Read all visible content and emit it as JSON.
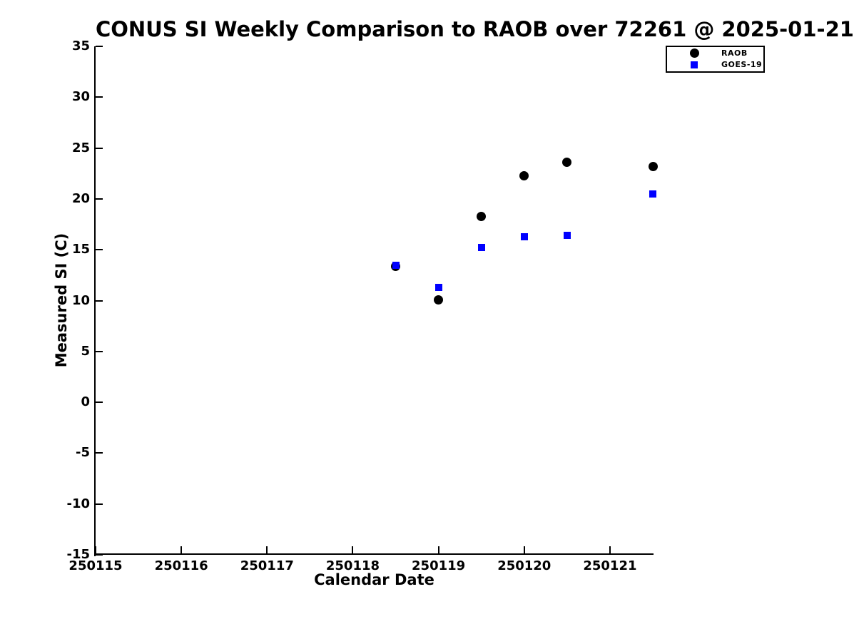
{
  "title": "CONUS SI Weekly Comparison to RAOB over 72261 @ 2025-01-21",
  "chart_data": {
    "type": "scatter",
    "title": "CONUS SI Weekly Comparison to RAOB over 72261 @ 2025-01-21",
    "xlabel": "Calendar Date",
    "ylabel": "Measured SI (C)",
    "xlim": [
      250115,
      250121.5
    ],
    "ylim": [
      -15,
      35
    ],
    "grid": false,
    "legend_position": "top-right",
    "x_ticks": [
      "250115",
      "250116",
      "250117",
      "250118",
      "250119",
      "250120",
      "250121"
    ],
    "x_tick_values": [
      250115,
      250116,
      250117,
      250118,
      250119,
      250120,
      250121
    ],
    "y_ticks": [
      "35",
      "30",
      "25",
      "20",
      "15",
      "10",
      "5",
      "0",
      "-5",
      "-10",
      "-15"
    ],
    "y_tick_values": [
      35,
      30,
      25,
      20,
      15,
      10,
      5,
      0,
      -5,
      -10,
      -15
    ],
    "series": [
      {
        "name": "RAOB",
        "marker": "circle",
        "color": "#000000",
        "points": [
          [
            250118.5,
            13.4
          ],
          [
            250119.0,
            10.1
          ],
          [
            250119.5,
            18.3
          ],
          [
            250120.0,
            22.3
          ],
          [
            250120.5,
            23.6
          ],
          [
            250121.5,
            23.2
          ]
        ]
      },
      {
        "name": "GOES-19",
        "marker": "square",
        "color": "#0000ff",
        "points": [
          [
            250118.5,
            13.5
          ],
          [
            250119.0,
            11.3
          ],
          [
            250119.5,
            15.2
          ],
          [
            250120.0,
            16.3
          ],
          [
            250120.5,
            16.4
          ],
          [
            250121.5,
            20.5
          ]
        ]
      }
    ]
  }
}
